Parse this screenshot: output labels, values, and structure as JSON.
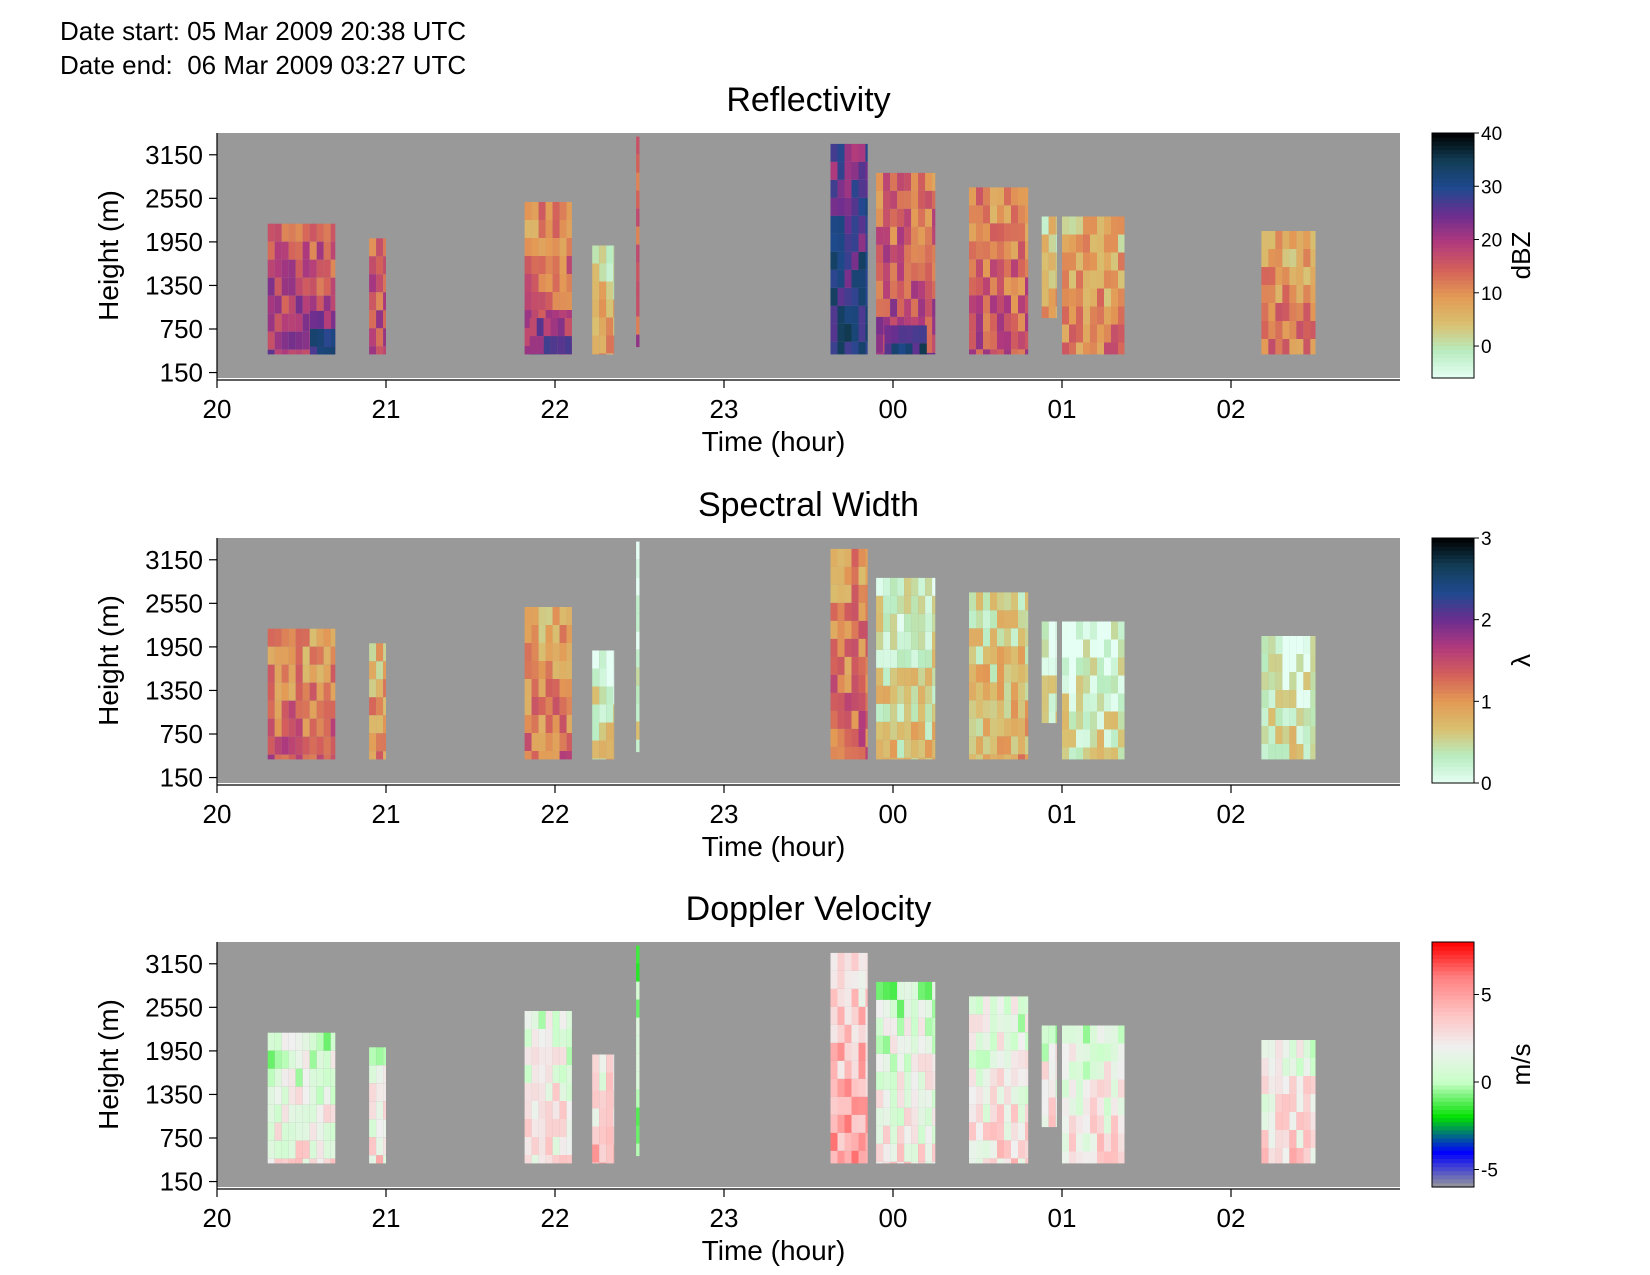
{
  "header": {
    "date_start": "Date start: 05 Mar 2009 20:38 UTC",
    "date_end": "Date end:  06 Mar 2009 03:27 UTC"
  },
  "colors": {
    "no_data": "#999999"
  },
  "chart_data": [
    {
      "type": "heatmap",
      "title": "Reflectivity",
      "xlabel": "Time (hour)",
      "ylabel": "Height (m)",
      "x_ticks": [
        "20",
        "21",
        "22",
        "23",
        "00",
        "01",
        "02"
      ],
      "y_ticks": [
        "150",
        "750",
        "1350",
        "1950",
        "2550",
        "3150"
      ],
      "xlim_hours": [
        20,
        27
      ],
      "ylim": [
        75,
        3450
      ],
      "colorbar": {
        "label": "dBZ",
        "ticks": [
          "40",
          "30",
          "20",
          "10",
          "0"
        ],
        "range": [
          -6,
          40
        ],
        "colors": [
          "#e6fff5",
          "#b8ecc0",
          "#d9c070",
          "#e39a55",
          "#d4605a",
          "#b0397d",
          "#6b2e8f",
          "#1f4a8f",
          "#123d55",
          "#000000"
        ]
      },
      "cells": [
        {
          "t0": 20.3,
          "t1": 20.7,
          "h0": 400,
          "h1": 2200,
          "value": 18
        },
        {
          "t0": 20.55,
          "t1": 20.7,
          "h0": 400,
          "h1": 1000,
          "value": 28
        },
        {
          "t0": 20.9,
          "t1": 21.0,
          "h0": 400,
          "h1": 2000,
          "value": 16
        },
        {
          "t0": 21.82,
          "t1": 22.1,
          "h0": 400,
          "h1": 2500,
          "value": 14
        },
        {
          "t0": 21.85,
          "t1": 22.1,
          "h0": 400,
          "h1": 900,
          "value": 24
        },
        {
          "t0": 22.22,
          "t1": 22.35,
          "h0": 400,
          "h1": 1900,
          "value": 5
        },
        {
          "t0": 22.48,
          "t1": 22.5,
          "h0": 500,
          "h1": 3400,
          "value": 14
        },
        {
          "t0": 23.63,
          "t1": 23.85,
          "h0": 400,
          "h1": 3300,
          "value": 28
        },
        {
          "t0": 23.9,
          "t1": 24.25,
          "h0": 400,
          "h1": 2900,
          "value": 16
        },
        {
          "t0": 23.95,
          "t1": 24.2,
          "h0": 400,
          "h1": 800,
          "value": 30
        },
        {
          "t0": 24.45,
          "t1": 24.8,
          "h0": 400,
          "h1": 2700,
          "value": 14
        },
        {
          "t0": 24.88,
          "t1": 24.97,
          "h0": 900,
          "h1": 2300,
          "value": 6
        },
        {
          "t0": 25.0,
          "t1": 25.37,
          "h0": 400,
          "h1": 2300,
          "value": 9
        },
        {
          "t0": 26.18,
          "t1": 26.5,
          "h0": 400,
          "h1": 2100,
          "value": 10
        }
      ]
    },
    {
      "type": "heatmap",
      "title": "Spectral Width",
      "xlabel": "Time (hour)",
      "ylabel": "Height (m)",
      "x_ticks": [
        "20",
        "21",
        "22",
        "23",
        "00",
        "01",
        "02"
      ],
      "y_ticks": [
        "150",
        "750",
        "1350",
        "1950",
        "2550",
        "3150"
      ],
      "xlim_hours": [
        20,
        27
      ],
      "ylim": [
        75,
        3450
      ],
      "colorbar": {
        "label": "λ",
        "ticks": [
          "3",
          "2",
          "1",
          "0"
        ],
        "range": [
          0,
          3
        ],
        "colors": [
          "#e6fff5",
          "#b8ecc0",
          "#d9c070",
          "#e39a55",
          "#d4605a",
          "#b0397d",
          "#6b2e8f",
          "#1f4a8f",
          "#123d55",
          "#000000"
        ]
      },
      "cells": [
        {
          "t0": 20.3,
          "t1": 20.7,
          "h0": 400,
          "h1": 2200,
          "value": 1.2
        },
        {
          "t0": 20.9,
          "t1": 21.0,
          "h0": 400,
          "h1": 2000,
          "value": 1.0
        },
        {
          "t0": 21.82,
          "t1": 22.1,
          "h0": 400,
          "h1": 2500,
          "value": 1.1
        },
        {
          "t0": 22.22,
          "t1": 22.35,
          "h0": 400,
          "h1": 1900,
          "value": 0.4
        },
        {
          "t0": 22.48,
          "t1": 22.5,
          "h0": 500,
          "h1": 3400,
          "value": 0.2
        },
        {
          "t0": 23.63,
          "t1": 23.85,
          "h0": 400,
          "h1": 3300,
          "value": 1.2
        },
        {
          "t0": 23.9,
          "t1": 24.25,
          "h0": 400,
          "h1": 2900,
          "value": 0.5
        },
        {
          "t0": 24.45,
          "t1": 24.8,
          "h0": 400,
          "h1": 2700,
          "value": 0.7
        },
        {
          "t0": 24.88,
          "t1": 24.97,
          "h0": 900,
          "h1": 2300,
          "value": 0.3
        },
        {
          "t0": 25.0,
          "t1": 25.37,
          "h0": 400,
          "h1": 2300,
          "value": 0.35
        },
        {
          "t0": 26.18,
          "t1": 26.5,
          "h0": 400,
          "h1": 2100,
          "value": 0.4
        }
      ]
    },
    {
      "type": "heatmap",
      "title": "Doppler Velocity",
      "xlabel": "Time (hour)",
      "ylabel": "Height (m)",
      "x_ticks": [
        "20",
        "21",
        "22",
        "23",
        "00",
        "01",
        "02"
      ],
      "y_ticks": [
        "150",
        "750",
        "1350",
        "1950",
        "2550",
        "3150"
      ],
      "xlim_hours": [
        20,
        27
      ],
      "ylim": [
        75,
        3450
      ],
      "colorbar": {
        "label": "m/s",
        "ticks": [
          "5",
          "0",
          "-5"
        ],
        "range": [
          -6,
          8
        ],
        "colors": [
          "#999999",
          "#0000ff",
          "#00e000",
          "#c8ffc8",
          "#f0f0f0",
          "#ffc0c0",
          "#ff8080",
          "#ff0000"
        ]
      },
      "cells": [
        {
          "t0": 20.3,
          "t1": 20.7,
          "h0": 400,
          "h1": 2200,
          "value": 1.5
        },
        {
          "t0": 20.9,
          "t1": 21.0,
          "h0": 400,
          "h1": 2000,
          "value": 2.0
        },
        {
          "t0": 21.82,
          "t1": 22.1,
          "h0": 400,
          "h1": 2500,
          "value": 2.0
        },
        {
          "t0": 22.22,
          "t1": 22.35,
          "h0": 400,
          "h1": 1900,
          "value": 3.0
        },
        {
          "t0": 22.48,
          "t1": 22.5,
          "h0": 500,
          "h1": 3400,
          "value": 0.0
        },
        {
          "t0": 23.63,
          "t1": 23.85,
          "h0": 400,
          "h1": 3300,
          "value": 4.0
        },
        {
          "t0": 23.9,
          "t1": 24.25,
          "h0": 400,
          "h1": 2900,
          "value": 1.5
        },
        {
          "t0": 24.45,
          "t1": 24.8,
          "h0": 400,
          "h1": 2700,
          "value": 2.0
        },
        {
          "t0": 24.88,
          "t1": 24.97,
          "h0": 900,
          "h1": 2300,
          "value": 2.0
        },
        {
          "t0": 25.0,
          "t1": 25.37,
          "h0": 400,
          "h1": 2300,
          "value": 2.0
        },
        {
          "t0": 26.18,
          "t1": 26.5,
          "h0": 400,
          "h1": 2100,
          "value": 2.5
        }
      ]
    }
  ]
}
